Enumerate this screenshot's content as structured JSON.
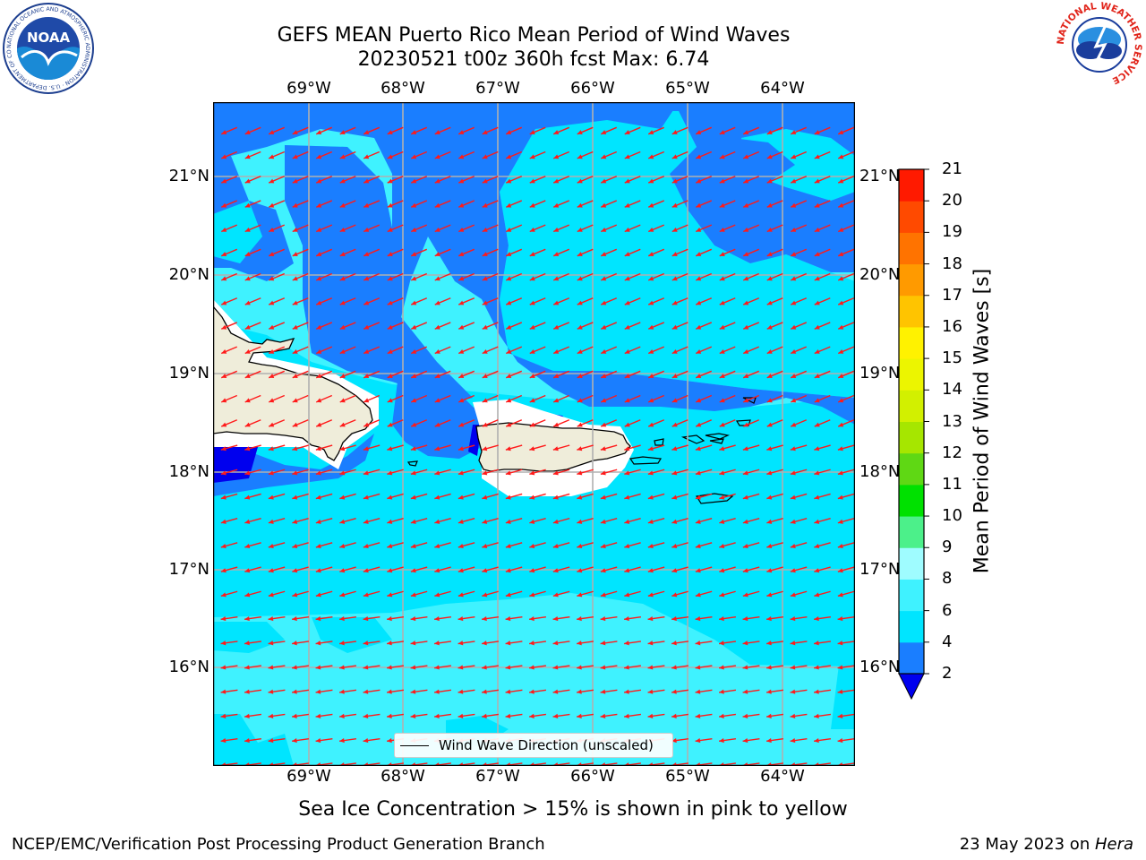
{
  "title_line1": "GEFS MEAN Puerto Rico Mean Period of Wind Waves",
  "title_line2": "20230521 t00z 360h fcst   Max: 6.74",
  "lon_labels": [
    "69°W",
    "68°W",
    "67°W",
    "66°W",
    "65°W",
    "64°W"
  ],
  "lat_labels": [
    "21°N",
    "20°N",
    "19°N",
    "18°N",
    "17°N",
    "16°N"
  ],
  "colorbar": {
    "label": "Mean Period of Wind Waves [s]",
    "ticks": [
      "2",
      "4",
      "6",
      "8",
      "9",
      "10",
      "11",
      "12",
      "13",
      "14",
      "15",
      "16",
      "17",
      "18",
      "19",
      "20",
      "21"
    ],
    "colors": [
      "#1a7eff",
      "#00e5ff",
      "#3ff2ff",
      "#9ffcff",
      "#4cf08a",
      "#00e100",
      "#5fd814",
      "#a6e600",
      "#d2f000",
      "#ecf500",
      "#fff200",
      "#ffc400",
      "#ff9a00",
      "#ff7300",
      "#ff4a00",
      "#ff1a00"
    ],
    "under_color": "#0000ee"
  },
  "legend": {
    "label": "Wind Wave Direction (unscaled)"
  },
  "note": "Sea Ice Concentration > 15% is shown in pink to yellow",
  "footer_left": "NCEP/EMC/Verification Post Processing Product Generation Branch",
  "footer_date": "23 May 2023 on ",
  "footer_host": "Hera",
  "logos": {
    "noaa_text": "NOAA",
    "noaa_ring": "NATIONAL OCEANIC AND ATMOSPHERIC ADMINISTRATION · U.S. DEPARTMENT OF COMMERCE",
    "nws_ring": "NATIONAL WEATHER SERVICE"
  },
  "map_colors": {
    "band_2_4": "#1a7eff",
    "band_4_6": "#00e5ff",
    "band_6_8": "#3ff2ff",
    "below_2": "#0000ee",
    "land": "#efedda",
    "arrow": "#ff1a1a",
    "grid": "#b0b0b0"
  }
}
